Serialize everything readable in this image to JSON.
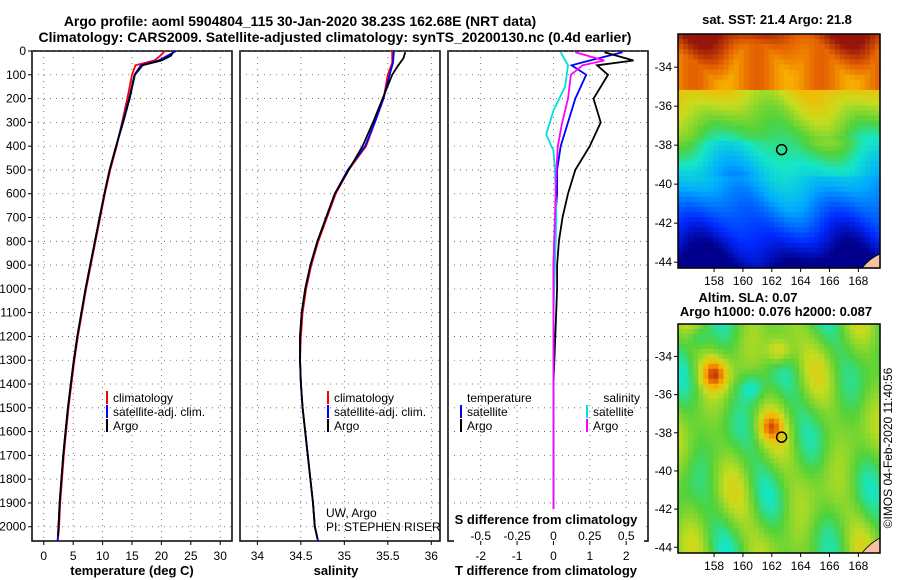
{
  "header": {
    "line1": "Argo profile: aoml 5904804_115 30-Jan-2020 38.23S 162.68E (NRT data)",
    "line2": "Climatology: CARS2009. Satellite-adjusted climatology: synTS_20200130.nc (0.4d earlier)"
  },
  "colors": {
    "climatology": "#ff0000",
    "satellite": "#0000ff",
    "argo": "#000000",
    "sal_satellite": "#00e0e0",
    "sal_argo": "#ff00ff"
  },
  "chart_data": [
    {
      "type": "line",
      "title": "",
      "xlabel": "temperature (deg C)",
      "ylabel": "",
      "xlim": [
        -2,
        32
      ],
      "ylim": [
        2060,
        0
      ],
      "xticks": [
        "0",
        "5",
        "10",
        "15",
        "20",
        "25",
        "30"
      ],
      "xtick_values": [
        0,
        5,
        10,
        15,
        20,
        25,
        30
      ],
      "yticks": [
        "0",
        "100",
        "200",
        "300",
        "400",
        "500",
        "600",
        "700",
        "800",
        "900",
        "1000",
        "1100",
        "1200",
        "1300",
        "1400",
        "1500",
        "1600",
        "1700",
        "1800",
        "1900",
        "2000"
      ],
      "ytick_values": [
        0,
        100,
        200,
        300,
        400,
        500,
        600,
        700,
        800,
        900,
        1000,
        1100,
        1200,
        1300,
        1400,
        1500,
        1600,
        1700,
        1800,
        1900,
        2000
      ],
      "legend": [
        "climatology",
        "satellite-adj. clim.",
        "Argo"
      ],
      "series": [
        {
          "name": "climatology",
          "color": "#ff0000",
          "x": [
            20.6,
            19.8,
            18.8,
            15.6,
            15.0,
            14.2,
            13.3,
            12.4,
            11.3,
            10.4,
            9.6,
            8.8,
            8.0,
            7.2,
            6.5,
            5.8,
            5.2,
            4.7,
            4.2,
            3.8,
            3.4,
            3.1,
            2.8,
            2.6,
            2.5,
            2.4,
            2.35
          ],
          "y": [
            0,
            20,
            40,
            60,
            100,
            200,
            300,
            400,
            500,
            600,
            700,
            800,
            900,
            1000,
            1100,
            1200,
            1300,
            1400,
            1500,
            1600,
            1700,
            1800,
            1900,
            2000,
            2030,
            2050,
            2060
          ]
        },
        {
          "name": "satellite",
          "color": "#0000ff",
          "x": [
            22.5,
            21.0,
            19.5,
            16.5,
            15.4,
            14.5,
            13.4,
            12.3,
            11.2,
            10.3,
            9.5,
            8.7,
            7.9,
            7.1,
            6.4,
            5.7,
            5.1,
            4.6,
            4.1,
            3.7,
            3.3,
            3.0,
            2.7,
            2.5,
            2.4,
            2.35
          ],
          "y": [
            0,
            20,
            40,
            60,
            100,
            200,
            300,
            400,
            500,
            600,
            700,
            800,
            900,
            1000,
            1100,
            1200,
            1300,
            1400,
            1500,
            1600,
            1700,
            1800,
            1900,
            2000,
            2040,
            2060
          ]
        },
        {
          "name": "Argo",
          "color": "#000000",
          "x": [
            22.0,
            21.6,
            20.0,
            16.8,
            15.5,
            14.6,
            13.5,
            12.3,
            11.2,
            10.3,
            9.5,
            8.7,
            7.9,
            7.1,
            6.4,
            5.7,
            5.1,
            4.6,
            4.1,
            3.7,
            3.3,
            3.0,
            2.7,
            2.5,
            2.4
          ],
          "y": [
            5,
            20,
            40,
            60,
            100,
            200,
            300,
            400,
            500,
            600,
            700,
            800,
            900,
            1000,
            1100,
            1200,
            1300,
            1400,
            1500,
            1600,
            1700,
            1800,
            1900,
            2000,
            2040
          ]
        }
      ]
    },
    {
      "type": "line",
      "title": "",
      "xlabel": "salinity",
      "ylabel": "",
      "xlim": [
        33.8,
        36.1
      ],
      "ylim": [
        2060,
        0
      ],
      "xticks": [
        "34",
        "34.5",
        "35",
        "35.5",
        "36"
      ],
      "xtick_values": [
        34,
        34.5,
        35,
        35.5,
        36
      ],
      "yticks": [],
      "ytick_values": [
        0,
        100,
        200,
        300,
        400,
        500,
        600,
        700,
        800,
        900,
        1000,
        1100,
        1200,
        1300,
        1400,
        1500,
        1600,
        1700,
        1800,
        1900,
        2000
      ],
      "legend": [
        "climatology",
        "satellite-adj. clim.",
        "Argo"
      ],
      "annotations": [
        "UW, Argo",
        "PI: STEPHEN RISER"
      ],
      "series": [
        {
          "name": "climatology",
          "color": "#ff0000",
          "x": [
            35.55,
            35.55,
            35.5,
            35.45,
            35.35,
            35.25,
            35.05,
            34.9,
            34.8,
            34.7,
            34.62,
            34.56,
            34.52,
            34.5,
            34.49,
            34.5,
            34.52,
            34.55,
            34.58,
            34.61,
            34.64,
            34.66,
            34.68,
            34.69,
            34.7
          ],
          "y": [
            0,
            50,
            100,
            200,
            300,
            400,
            500,
            600,
            700,
            800,
            900,
            1000,
            1100,
            1200,
            1300,
            1400,
            1500,
            1600,
            1700,
            1800,
            1900,
            2000,
            2030,
            2050,
            2060
          ]
        },
        {
          "name": "satellite",
          "color": "#0000ff",
          "x": [
            35.57,
            35.56,
            35.52,
            35.45,
            35.35,
            35.24,
            35.04,
            34.89,
            34.79,
            34.69,
            34.61,
            34.55,
            34.51,
            34.49,
            34.49,
            34.5,
            34.52,
            34.55,
            34.58,
            34.61,
            34.64,
            34.66,
            34.68,
            34.69,
            34.7
          ],
          "y": [
            0,
            50,
            100,
            200,
            300,
            400,
            500,
            600,
            700,
            800,
            900,
            1000,
            1100,
            1200,
            1300,
            1400,
            1500,
            1600,
            1700,
            1800,
            1900,
            2000,
            2030,
            2050,
            2060
          ]
        },
        {
          "name": "Argo",
          "color": "#000000",
          "x": [
            35.7,
            35.68,
            35.62,
            35.55,
            35.44,
            35.33,
            35.21,
            35.05,
            34.89,
            34.79,
            34.69,
            34.61,
            34.55,
            34.51,
            34.49,
            34.49,
            34.5,
            34.52,
            34.55,
            34.58,
            34.61,
            34.64,
            34.66,
            34.68,
            34.69
          ],
          "y": [
            5,
            30,
            60,
            100,
            200,
            300,
            400,
            500,
            600,
            700,
            800,
            900,
            1000,
            1100,
            1200,
            1300,
            1400,
            1500,
            1600,
            1700,
            1800,
            1900,
            2000,
            2030,
            2050
          ]
        }
      ]
    },
    {
      "type": "line",
      "title": "",
      "xlabel": "T difference from climatology",
      "xlabel_top": "S difference from climatology",
      "ylabel": "",
      "xlim": [
        -2.9,
        2.6
      ],
      "ylim": [
        2060,
        0
      ],
      "xticks": [
        "-2",
        "-1",
        "0",
        "1",
        "2"
      ],
      "xtick_values": [
        -2,
        -1,
        0,
        1,
        2
      ],
      "sticks": [
        "-0.5",
        "-0.25",
        "0",
        "0.25",
        "0.5"
      ],
      "stick_values": [
        -0.5,
        -0.25,
        0,
        0.25,
        0.5
      ],
      "ytick_values": [
        0,
        100,
        200,
        300,
        400,
        500,
        600,
        700,
        800,
        900,
        1000,
        1100,
        1200,
        1300,
        1400,
        1500,
        1600,
        1700,
        1800,
        1900,
        2000
      ],
      "legend_temperature": {
        "title": "temperature",
        "items": [
          "satellite",
          "Argo"
        ]
      },
      "legend_salinity": {
        "title": "salinity",
        "items": [
          "satellite",
          "Argo"
        ]
      },
      "series": [
        {
          "name": "T satellite",
          "color": "#0000ff",
          "x": [
            1.9,
            1.0,
            0.5,
            0.9,
            0.6,
            0.4,
            0.2,
            0.1,
            0.1,
            0.05,
            0.0,
            0.0,
            0.0,
            0.0,
            0.0,
            0.0,
            0.0,
            0.0
          ],
          "y": [
            5,
            40,
            60,
            100,
            200,
            300,
            400,
            500,
            600,
            700,
            900,
            1100,
            1300,
            1500,
            1700,
            1900,
            2000,
            2040
          ]
        },
        {
          "name": "T Argo",
          "color": "#000000",
          "x": [
            1.4,
            2.2,
            1.2,
            1.5,
            1.1,
            1.3,
            1.0,
            0.6,
            0.4,
            0.25,
            0.15,
            0.1,
            0.1,
            0.05,
            0.0,
            0.0,
            0.0,
            0.0
          ],
          "y": [
            5,
            40,
            60,
            100,
            200,
            300,
            400,
            500,
            600,
            700,
            800,
            900,
            1000,
            1200,
            1400,
            1700,
            1900,
            2040
          ]
        },
        {
          "name": "S satellite",
          "color": "#00e0e0",
          "x": [
            0.05,
            0.1,
            0.08,
            0.0,
            -0.05,
            0.0,
            0.01,
            0.02,
            0.01,
            0.0,
            0.0,
            0.0,
            0.0,
            0.0,
            0.0
          ],
          "y": [
            5,
            60,
            150,
            250,
            350,
            420,
            500,
            700,
            900,
            1100,
            1300,
            1500,
            1700,
            1900,
            2040
          ]
        },
        {
          "name": "S Argo",
          "color": "#ff00ff",
          "x": [
            0.15,
            0.35,
            0.2,
            0.12,
            0.1,
            0.06,
            0.03,
            0.02,
            0.01,
            0.0,
            0.0,
            0.0,
            0.0,
            0.0
          ],
          "y": [
            5,
            40,
            60,
            100,
            200,
            300,
            400,
            500,
            700,
            900,
            1200,
            1500,
            1800,
            2040
          ]
        }
      ]
    },
    {
      "type": "heatmap",
      "title": "sat. SST: 21.4 Argo: 21.8",
      "xlim": [
        155.5,
        169.5
      ],
      "ylim": [
        -44.3,
        -32.3
      ],
      "xticks": [
        "158",
        "160",
        "162",
        "164",
        "166",
        "168"
      ],
      "xtick_values": [
        158,
        160,
        162,
        164,
        166,
        168
      ],
      "yticks": [
        "-34",
        "-36",
        "-38",
        "-40",
        "-42",
        "-44"
      ],
      "ytick_values": [
        -34,
        -36,
        -38,
        -40,
        -42,
        -44
      ],
      "marker": {
        "lon": 162.68,
        "lat": -38.23
      },
      "value_range": [
        10,
        25
      ]
    },
    {
      "type": "heatmap",
      "title": "Altim. SLA: 0.07",
      "subtitle": "Argo h1000: 0.076 h2000: 0.087",
      "xlim": [
        155.5,
        169.5
      ],
      "ylim": [
        -44.3,
        -32.3
      ],
      "xticks": [
        "158",
        "160",
        "162",
        "164",
        "166",
        "168"
      ],
      "xtick_values": [
        158,
        160,
        162,
        164,
        166,
        168
      ],
      "yticks": [
        "-34",
        "-36",
        "-38",
        "-40",
        "-42",
        "-44"
      ],
      "ytick_values": [
        -34,
        -36,
        -38,
        -40,
        -42,
        -44
      ],
      "marker": {
        "lon": 162.68,
        "lat": -38.23
      },
      "value_range": [
        -0.3,
        0.3
      ]
    }
  ],
  "footer": {
    "credit": "©IMOS 04-Feb-2020 11:40:56"
  }
}
